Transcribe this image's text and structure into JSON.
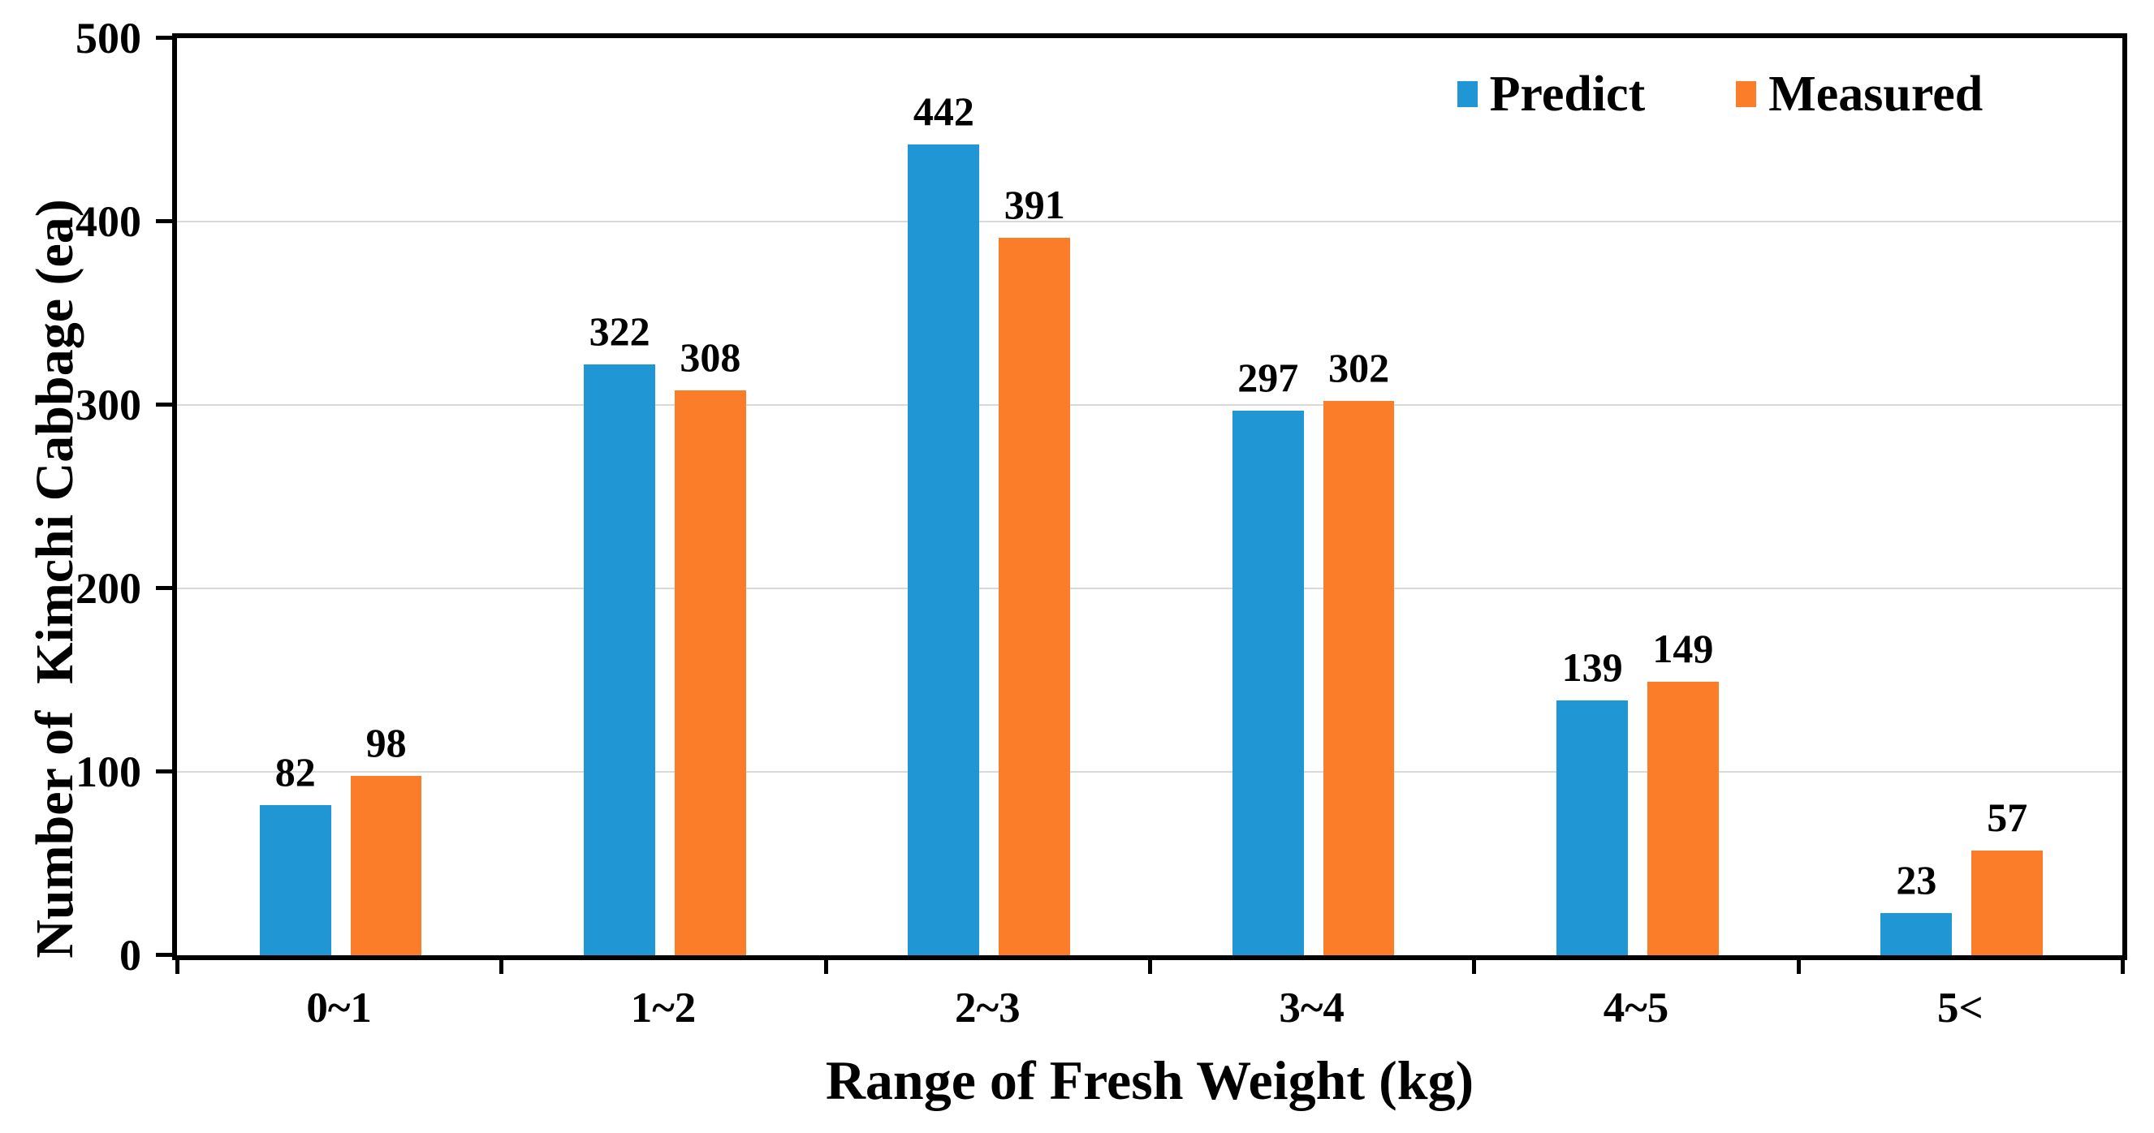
{
  "chart_data": {
    "type": "bar",
    "categories": [
      "0~1",
      "1~2",
      "2~3",
      "3~4",
      "4~5",
      "5<"
    ],
    "series": [
      {
        "name": "Predict",
        "color": "#2196d4",
        "values": [
          82,
          322,
          442,
          297,
          139,
          23
        ]
      },
      {
        "name": "Measured",
        "color": "#fb7d29",
        "values": [
          98,
          308,
          391,
          302,
          149,
          57
        ]
      }
    ],
    "title": "",
    "xlabel": "Range of Fresh Weight (kg)",
    "ylabel": "Number of  Kimchi Cabbage (ea)",
    "ylim": [
      0,
      500
    ],
    "y_ticks": [
      0,
      100,
      200,
      300,
      400,
      500
    ],
    "grid": "horizontal-light-gray",
    "grid_color": "#d9d9d9",
    "axis_color": "#000000",
    "legend_position": "top-right-inside"
  }
}
